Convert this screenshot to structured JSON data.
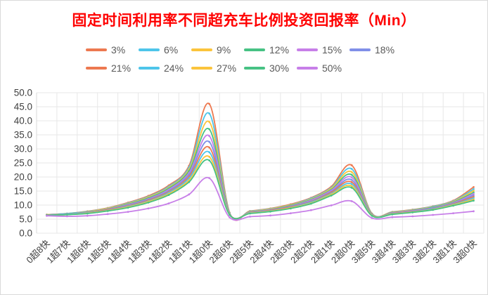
{
  "chart_data": {
    "type": "line",
    "title": "固定时间利用率不同超充车比例投资回报率（Min）",
    "title_color": "#FF0000",
    "smooth": true,
    "grid": true,
    "legend_position": "top",
    "legend_rows": [
      6,
      5
    ],
    "ylim": [
      0,
      50
    ],
    "ytick_step": 5,
    "yticks": [
      "50.0",
      "45.0",
      "40.0",
      "35.0",
      "30.0",
      "25.0",
      "20.0",
      "15.0",
      "10.0",
      "5.0",
      "0.0"
    ],
    "categories": [
      "0超8快",
      "1超7快",
      "1超6快",
      "1超5快",
      "1超4快",
      "1超3快",
      "1超2快",
      "1超1快",
      "1超0快",
      "2超6快",
      "2超5快",
      "2超4快",
      "2超3快",
      "2超2快",
      "2超1快",
      "2超0快",
      "3超5快",
      "3超4快",
      "3超3快",
      "3超2快",
      "3超1快",
      "3超0快"
    ],
    "series": [
      {
        "name": "3%",
        "color": "#ED7950",
        "values": [
          6.6,
          7.0,
          7.8,
          9.0,
          10.9,
          13.3,
          17.0,
          24.0,
          46.0,
          7.3,
          7.9,
          8.8,
          10.3,
          12.6,
          16.6,
          24.2,
          7.0,
          7.6,
          8.4,
          9.6,
          11.6,
          16.4
        ]
      },
      {
        "name": "6%",
        "color": "#4EC5EA",
        "values": [
          6.6,
          7.0,
          7.7,
          8.9,
          10.7,
          13.0,
          16.6,
          23.4,
          42.6,
          7.2,
          7.8,
          8.7,
          10.1,
          12.4,
          16.2,
          22.9,
          6.9,
          7.5,
          8.3,
          9.5,
          11.4,
          15.7
        ]
      },
      {
        "name": "9%",
        "color": "#FBC43C",
        "values": [
          6.6,
          6.9,
          7.6,
          8.8,
          10.5,
          12.8,
          16.2,
          22.7,
          39.6,
          7.1,
          7.7,
          8.6,
          10.0,
          12.1,
          15.9,
          21.8,
          6.8,
          7.4,
          8.2,
          9.3,
          11.2,
          15.1
        ]
      },
      {
        "name": "12%",
        "color": "#47C284",
        "values": [
          6.5,
          6.9,
          7.5,
          8.6,
          10.3,
          12.5,
          15.9,
          22.1,
          37.0,
          7.0,
          7.6,
          8.4,
          9.8,
          11.9,
          15.5,
          20.8,
          6.7,
          7.3,
          8.1,
          9.2,
          11.0,
          14.5
        ]
      },
      {
        "name": "15%",
        "color": "#C77FE8",
        "values": [
          6.5,
          6.8,
          7.4,
          8.5,
          10.1,
          12.2,
          15.5,
          21.4,
          34.6,
          6.9,
          7.5,
          8.3,
          9.6,
          11.7,
          15.2,
          19.9,
          6.6,
          7.2,
          8.0,
          9.0,
          10.8,
          14.0
        ]
      },
      {
        "name": "18%",
        "color": "#8090E8",
        "values": [
          6.5,
          6.8,
          7.4,
          8.4,
          9.9,
          12.0,
          15.1,
          20.8,
          32.5,
          6.9,
          7.4,
          8.2,
          9.5,
          11.4,
          14.8,
          19.0,
          6.6,
          7.1,
          7.8,
          8.9,
          10.6,
          13.5
        ]
      },
      {
        "name": "21%",
        "color": "#ED7950",
        "values": [
          6.5,
          6.7,
          7.3,
          8.3,
          9.7,
          11.7,
          14.7,
          20.1,
          30.5,
          6.8,
          7.3,
          8.1,
          9.3,
          11.2,
          14.5,
          18.2,
          6.5,
          7.0,
          7.7,
          8.7,
          10.4,
          13.0
        ]
      },
      {
        "name": "24%",
        "color": "#4EC5EA",
        "values": [
          6.4,
          6.7,
          7.2,
          8.1,
          9.5,
          11.4,
          14.4,
          19.5,
          28.8,
          6.7,
          7.2,
          7.9,
          9.1,
          11.0,
          14.1,
          17.5,
          6.4,
          6.9,
          7.6,
          8.6,
          10.2,
          12.5
        ]
      },
      {
        "name": "27%",
        "color": "#FBC43C",
        "values": [
          6.4,
          6.6,
          7.1,
          8.0,
          9.3,
          11.2,
          14.0,
          18.8,
          27.2,
          6.6,
          7.1,
          7.8,
          9.0,
          10.7,
          13.8,
          16.8,
          6.3,
          6.8,
          7.5,
          8.4,
          10.0,
          12.0
        ]
      },
      {
        "name": "30%",
        "color": "#47C284",
        "values": [
          6.4,
          6.6,
          7.0,
          7.9,
          9.1,
          10.9,
          13.6,
          18.2,
          25.9,
          6.5,
          7.0,
          7.7,
          8.8,
          10.5,
          13.4,
          16.2,
          6.2,
          6.7,
          7.4,
          8.3,
          9.8,
          11.6
        ]
      },
      {
        "name": "50%",
        "color": "#C77FE8",
        "values": [
          6.2,
          6.0,
          6.2,
          6.8,
          7.6,
          8.8,
          10.6,
          13.8,
          19.6,
          5.6,
          5.9,
          6.3,
          7.1,
          8.2,
          9.9,
          11.4,
          5.4,
          5.7,
          6.0,
          6.5,
          7.1,
          7.8
        ]
      }
    ],
    "axis_text_color": "#404040",
    "gridline_color": "#E7E7E7",
    "axisline_color": "#D9D9D9"
  }
}
